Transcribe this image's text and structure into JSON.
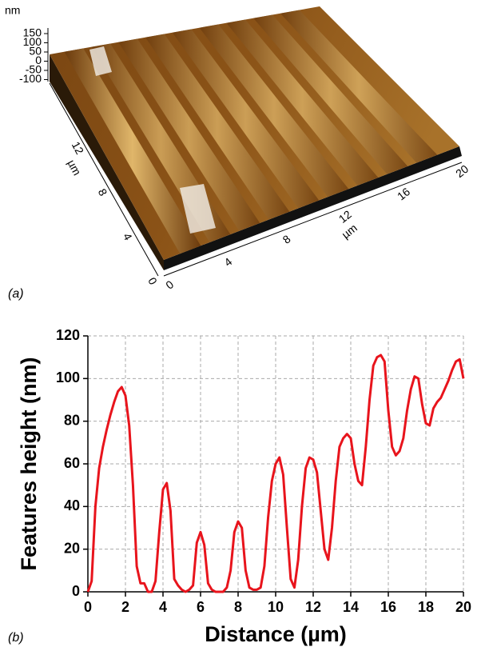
{
  "panel_a": {
    "label": "(a)",
    "z_unit": "nm",
    "z_ticks": [
      "150",
      "100",
      "50",
      "0",
      "-50",
      "-100"
    ],
    "y_unit": "µm",
    "y_ticks": [
      "0",
      "4",
      "8",
      "12"
    ],
    "x_unit": "µm",
    "x_ticks": [
      "0",
      "4",
      "8",
      "12",
      "16",
      "20"
    ]
  },
  "panel_b": {
    "label": "(b)"
  },
  "chart_data": {
    "type": "line",
    "xlabel": "Distance (µm)",
    "ylabel": "Features height (nm)",
    "color": "#e8141c",
    "grid": true,
    "xlim": [
      0,
      20
    ],
    "ylim": [
      0,
      120
    ],
    "xticks": [
      0,
      2,
      4,
      6,
      8,
      10,
      12,
      14,
      16,
      18,
      20
    ],
    "yticks": [
      0,
      20,
      40,
      60,
      80,
      100,
      120
    ],
    "x": [
      0,
      0.2,
      0.4,
      0.6,
      0.8,
      1.0,
      1.2,
      1.4,
      1.6,
      1.8,
      2.0,
      2.2,
      2.4,
      2.6,
      2.8,
      3.0,
      3.2,
      3.4,
      3.6,
      3.8,
      4.0,
      4.2,
      4.4,
      4.6,
      4.8,
      5.0,
      5.2,
      5.4,
      5.6,
      5.8,
      6.0,
      6.2,
      6.4,
      6.6,
      6.8,
      7.0,
      7.2,
      7.4,
      7.6,
      7.8,
      8.0,
      8.2,
      8.4,
      8.6,
      8.8,
      9.0,
      9.2,
      9.4,
      9.6,
      9.8,
      10.0,
      10.2,
      10.4,
      10.6,
      10.8,
      11.0,
      11.2,
      11.4,
      11.6,
      11.8,
      12.0,
      12.2,
      12.4,
      12.6,
      12.8,
      13.0,
      13.2,
      13.4,
      13.6,
      13.8,
      14.0,
      14.2,
      14.4,
      14.6,
      14.8,
      15.0,
      15.2,
      15.4,
      15.6,
      15.8,
      16.0,
      16.2,
      16.4,
      16.6,
      16.8,
      17.0,
      17.2,
      17.4,
      17.6,
      17.8,
      18.0,
      18.2,
      18.4,
      18.6,
      18.8,
      19.0,
      19.2,
      19.4,
      19.6,
      19.8,
      20.0
    ],
    "values": [
      0,
      5,
      40,
      58,
      68,
      76,
      83,
      89,
      94,
      96,
      92,
      78,
      50,
      12,
      4,
      4,
      0,
      0,
      5,
      28,
      48,
      51,
      38,
      6,
      3,
      1,
      0,
      1,
      3,
      23,
      28,
      22,
      4,
      1,
      0,
      0,
      0,
      2,
      10,
      28,
      33,
      30,
      10,
      2,
      1,
      1,
      2,
      12,
      35,
      52,
      60,
      63,
      55,
      30,
      6,
      2,
      15,
      40,
      58,
      63,
      62,
      56,
      38,
      20,
      15,
      30,
      52,
      68,
      72,
      74,
      72,
      60,
      52,
      50,
      68,
      90,
      106,
      110,
      111,
      108,
      85,
      68,
      64,
      66,
      72,
      85,
      95,
      101,
      100,
      88,
      79,
      78,
      86,
      89,
      91,
      95,
      99,
      104,
      108,
      109,
      100
    ]
  }
}
